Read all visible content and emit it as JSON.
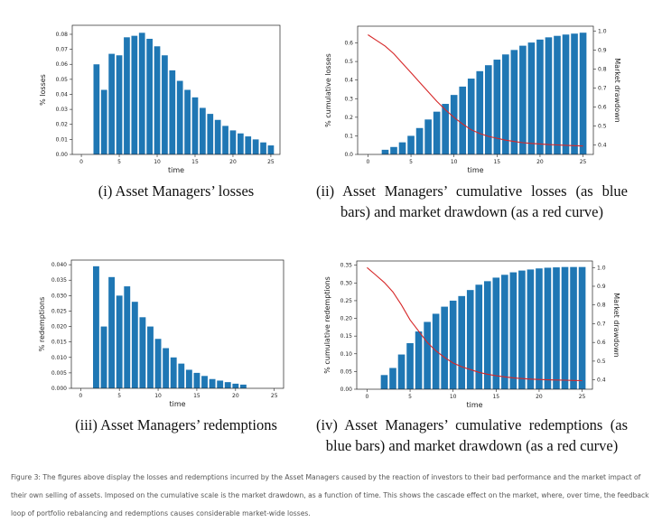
{
  "chart_data": [
    {
      "id": "p1",
      "type": "bar",
      "x": [
        2,
        3,
        4,
        5,
        6,
        7,
        8,
        9,
        10,
        11,
        12,
        13,
        14,
        15,
        16,
        17,
        18,
        19,
        20,
        21,
        22,
        23,
        24,
        25
      ],
      "values": [
        0.06,
        0.043,
        0.067,
        0.066,
        0.078,
        0.079,
        0.081,
        0.077,
        0.072,
        0.066,
        0.056,
        0.049,
        0.043,
        0.038,
        0.031,
        0.027,
        0.023,
        0.019,
        0.016,
        0.014,
        0.012,
        0.01,
        0.008,
        0.006
      ],
      "xlabel": "time",
      "ylabel": "% losses",
      "xlim": [
        -1.2,
        26.2
      ],
      "ylim": [
        0,
        0.086
      ],
      "xticks": [
        0,
        5,
        10,
        15,
        20,
        25
      ],
      "yticks": [
        "0.00",
        "0.01",
        "0.02",
        "0.03",
        "0.04",
        "0.05",
        "0.06",
        "0.07",
        "0.08"
      ],
      "bar_color": "#1f77b4",
      "caption": "(i) Asset Managers’ losses"
    },
    {
      "id": "p2",
      "type": "bar+line",
      "x": [
        2,
        3,
        4,
        5,
        6,
        7,
        8,
        9,
        10,
        11,
        12,
        13,
        14,
        15,
        16,
        17,
        18,
        19,
        20,
        21,
        22,
        23,
        24,
        25
      ],
      "values": [
        0.025,
        0.04,
        0.065,
        0.1,
        0.142,
        0.188,
        0.23,
        0.272,
        0.32,
        0.365,
        0.408,
        0.448,
        0.48,
        0.51,
        0.538,
        0.562,
        0.585,
        0.602,
        0.618,
        0.63,
        0.638,
        0.645,
        0.65,
        0.655
      ],
      "line": {
        "x": [
          0,
          1,
          2,
          3,
          4,
          5,
          6,
          7,
          8,
          9,
          10,
          11,
          12,
          13,
          14,
          15,
          16,
          17,
          18,
          19,
          20,
          21,
          22,
          23,
          24,
          25
        ],
        "y": [
          0.98,
          0.95,
          0.92,
          0.88,
          0.83,
          0.78,
          0.73,
          0.68,
          0.63,
          0.585,
          0.545,
          0.51,
          0.48,
          0.46,
          0.445,
          0.435,
          0.425,
          0.418,
          0.412,
          0.408,
          0.405,
          0.402,
          0.4,
          0.398,
          0.396,
          0.394
        ]
      },
      "xlabel": "time",
      "ylabel": "% cumulative losses",
      "ylabel_right": "Market drawdown",
      "xlim": [
        -1.2,
        26.2
      ],
      "ylim": [
        0,
        0.69
      ],
      "ylim_right": [
        0.35,
        1.025
      ],
      "xticks": [
        0,
        5,
        10,
        15,
        20,
        25
      ],
      "yticks": [
        "0.0",
        "0.1",
        "0.2",
        "0.3",
        "0.4",
        "0.5",
        "0.6"
      ],
      "yticks_right": [
        "0.4",
        "0.5",
        "0.6",
        "0.7",
        "0.8",
        "0.9",
        "1.0"
      ],
      "bar_color": "#1f77b4",
      "line_color": "#d62728",
      "caption": "(ii) Asset Managers’ cumulative losses (as blue bars) and market drawdown (as a red curve)"
    },
    {
      "id": "p3",
      "type": "bar",
      "x": [
        2,
        3,
        4,
        5,
        6,
        7,
        8,
        9,
        10,
        11,
        12,
        13,
        14,
        15,
        16,
        17,
        18,
        19,
        20,
        21,
        22,
        23,
        24,
        25
      ],
      "values": [
        0.0395,
        0.02,
        0.036,
        0.03,
        0.033,
        0.028,
        0.023,
        0.02,
        0.016,
        0.013,
        0.01,
        0.008,
        0.006,
        0.005,
        0.004,
        0.003,
        0.0025,
        0.002,
        0.0015,
        0.0012,
        0.0,
        0.0,
        0.0,
        0.0
      ],
      "xlabel": "time",
      "ylabel": "% redemptions",
      "xlim": [
        -1.2,
        26.2
      ],
      "ylim": [
        0,
        0.0415
      ],
      "xticks": [
        0,
        5,
        10,
        15,
        20,
        25
      ],
      "yticks": [
        "0.000",
        "0.005",
        "0.010",
        "0.015",
        "0.020",
        "0.025",
        "0.030",
        "0.035",
        "0.040"
      ],
      "bar_color": "#1f77b4",
      "caption": "(iii) Asset Managers’ redemptions"
    },
    {
      "id": "p4",
      "type": "bar+line",
      "x": [
        2,
        3,
        4,
        5,
        6,
        7,
        8,
        9,
        10,
        11,
        12,
        13,
        14,
        15,
        16,
        17,
        18,
        19,
        20,
        21,
        22,
        23,
        24,
        25
      ],
      "values": [
        0.04,
        0.06,
        0.098,
        0.13,
        0.163,
        0.19,
        0.213,
        0.233,
        0.25,
        0.263,
        0.28,
        0.295,
        0.305,
        0.315,
        0.323,
        0.33,
        0.335,
        0.338,
        0.341,
        0.343,
        0.344,
        0.345,
        0.345,
        0.345
      ],
      "line": {
        "x": [
          0,
          1,
          2,
          3,
          4,
          5,
          6,
          7,
          8,
          9,
          10,
          11,
          12,
          13,
          14,
          15,
          16,
          17,
          18,
          19,
          20,
          21,
          22,
          23,
          24,
          25
        ],
        "y": [
          1.0,
          0.96,
          0.92,
          0.87,
          0.8,
          0.72,
          0.66,
          0.6,
          0.555,
          0.52,
          0.49,
          0.47,
          0.455,
          0.44,
          0.43,
          0.422,
          0.416,
          0.411,
          0.407,
          0.404,
          0.402,
          0.4,
          0.399,
          0.398,
          0.397,
          0.396
        ]
      },
      "xlabel": "time",
      "ylabel": "% cumulative redemptions",
      "ylabel_right": "Market drawdown",
      "xlim": [
        -1.2,
        26.2
      ],
      "ylim": [
        0,
        0.362
      ],
      "ylim_right": [
        0.35,
        1.035
      ],
      "xticks": [
        0,
        5,
        10,
        15,
        20,
        25
      ],
      "yticks": [
        "0.00",
        "0.05",
        "0.10",
        "0.15",
        "0.20",
        "0.25",
        "0.30",
        "0.35"
      ],
      "yticks_right": [
        "0.4",
        "0.5",
        "0.6",
        "0.7",
        "0.8",
        "0.9",
        "1.0"
      ],
      "bar_color": "#1f77b4",
      "line_color": "#d62728",
      "caption": "(iv) Asset Managers’ cumulative redemptions (as blue bars) and market drawdown (as a red curve)"
    }
  ],
  "figure_caption": "Figure 3: The figures above display the losses and redemptions incurred by the Asset Managers caused by the reaction of investors to their bad performance and the market impact of their own selling of assets. Imposed on the cumulative scale is the market drawdown, as a function of time. This shows the cascade effect on the market, where, over time, the feedback loop of portfolio rebalancing and redemptions causes considerable market-wide losses."
}
